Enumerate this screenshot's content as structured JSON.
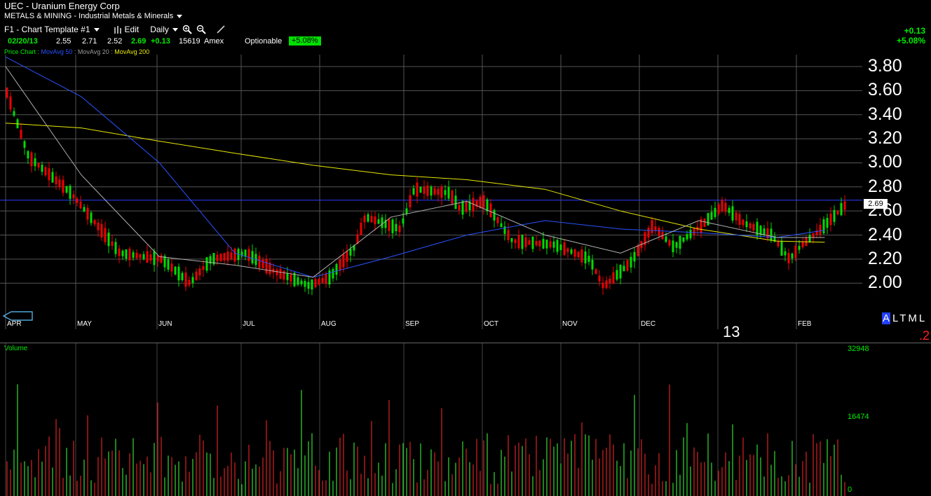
{
  "header": {
    "title": "UEC - Uranium Energy Corp",
    "sector": "METALS & MINING - Industrial Metals & Minerals"
  },
  "toolbar": {
    "template": "F1 - Chart Template #1",
    "edit": "Edit",
    "interval": "Daily",
    "icons": [
      "zoom-in-icon",
      "zoom-out-icon",
      "pencil-icon"
    ]
  },
  "quote": {
    "date": "02/20/13",
    "open": "2.55",
    "high": "2.71",
    "low": "2.52",
    "close": "2.69",
    "change": "+0.13",
    "volume": "15619",
    "exchange": "Amex",
    "optionable": "Optionable",
    "pct_badge": "+5.08%"
  },
  "change_top": {
    "abs": "+0.13",
    "pct": "+5.08%"
  },
  "legend": {
    "items": [
      {
        "text": "Price Chart",
        "color": "#00ee00"
      },
      {
        "text": "MovAvg 50",
        "color": "#2a52ff"
      },
      {
        "text": "MovAvg 20",
        "color": "#9a9a9a"
      },
      {
        "text": "MovAvg 200",
        "color": "#e8e800"
      }
    ]
  },
  "price_axis": {
    "labels": [
      "3.80",
      "3.60",
      "3.40",
      "3.20",
      "3.00",
      "2.80",
      "2.60",
      "2.40",
      "2.20",
      "2.00"
    ],
    "last_price": "2.69"
  },
  "months": [
    "APR",
    "MAY",
    "JUN",
    "JUL",
    "AUG",
    "SEP",
    "OCT",
    "NOV",
    "DEC",
    "13",
    "FEB"
  ],
  "year_label": "13",
  "altml": {
    "a": "A",
    "rest": "LTML",
    "digit": ".2"
  },
  "volume": {
    "title": "Volume",
    "labels": [
      "32948",
      "16474",
      "0"
    ]
  },
  "colors": {
    "up": "#00dd00",
    "down": "#ee0000",
    "ma50": "#2a52ff",
    "ma20": "#b0b0b0",
    "ma200": "#e8e800",
    "grid": "#555555"
  },
  "chart_data": {
    "type": "candlestick",
    "symbol": "UEC",
    "interval": "Daily",
    "ylim": [
      1.85,
      3.95
    ],
    "volume_max": 32948,
    "series": [
      {
        "name": "MovAvg 200",
        "x": [
          "2012-04-01",
          "2012-05-01",
          "2012-06-01",
          "2012-07-01",
          "2012-08-01",
          "2012-09-01",
          "2012-10-01",
          "2012-11-01",
          "2012-12-01",
          "2013-01-01",
          "2013-02-01",
          "2013-02-20"
        ],
        "values": [
          3.33,
          3.29,
          3.18,
          3.08,
          2.98,
          2.9,
          2.86,
          2.78,
          2.6,
          2.45,
          2.35,
          2.34
        ]
      },
      {
        "name": "MovAvg 50",
        "x": [
          "2012-04-01",
          "2012-05-01",
          "2012-06-01",
          "2012-07-01",
          "2012-08-01",
          "2012-09-01",
          "2012-10-01",
          "2012-11-01",
          "2012-12-01",
          "2013-01-01",
          "2013-02-01",
          "2013-02-20"
        ],
        "values": [
          3.88,
          3.55,
          3.0,
          2.25,
          2.05,
          2.22,
          2.4,
          2.52,
          2.45,
          2.42,
          2.38,
          2.44
        ]
      },
      {
        "name": "MovAvg 20",
        "x": [
          "2012-04-01",
          "2012-05-01",
          "2012-06-01",
          "2012-07-01",
          "2012-08-01",
          "2012-09-01",
          "2012-10-01",
          "2012-11-01",
          "2012-12-01",
          "2013-01-01",
          "2013-02-01",
          "2013-02-20"
        ],
        "values": [
          3.8,
          2.9,
          2.22,
          2.15,
          2.05,
          2.55,
          2.68,
          2.4,
          2.25,
          2.52,
          2.38,
          2.38
        ]
      }
    ]
  }
}
